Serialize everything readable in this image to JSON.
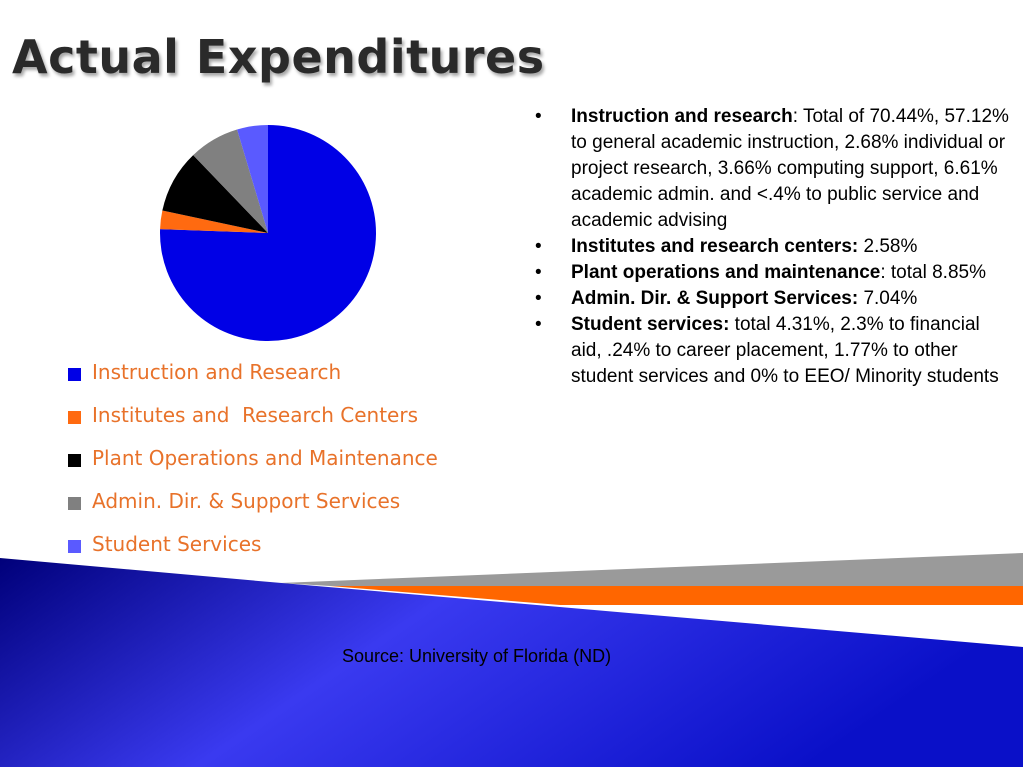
{
  "slide": {
    "title": "Actual Expenditures",
    "source": "Source: University of Florida (ND)"
  },
  "chart_data": {
    "type": "pie",
    "categories": [
      "Instruction and Research",
      "Institutes and  Research Centers",
      "Plant Operations and Maintenance",
      "Admin. Dir. & Support Services",
      "Student Services"
    ],
    "values": [
      70.44,
      2.58,
      8.85,
      7.04,
      4.31
    ],
    "colors": [
      "#0000e6",
      "#ff6a10",
      "#000000",
      "#808080",
      "#5a5aff"
    ],
    "legend_placement": "bottom-left",
    "start_angle_deg": 0,
    "direction": "clockwise"
  },
  "bullets": [
    {
      "bold": "Instruction and research",
      "text": ": Total of 70.44%, 57.12% to general academic instruction, 2.68% individual or project research, 3.66% computing support, 6.61% academic admin. and <.4% to public service and academic advising"
    },
    {
      "bold": "Institutes and research centers:",
      "text": " 2.58%"
    },
    {
      "bold": "Plant operations and maintenance",
      "text": ": total 8.85%"
    },
    {
      "bold": "Admin. Dir. & Support Services:",
      "text": " 7.04%"
    },
    {
      "bold": "Student services:",
      "text": " total 4.31%, 2.3% to financial aid, .24% to career placement, 1.77% to other student services and 0% to EEO/ Minority students"
    }
  ],
  "theme": {
    "blue": "#0a10c8",
    "orange": "#ff6600",
    "gray": "#9a9a9a",
    "legend_text": "#e8722a"
  }
}
